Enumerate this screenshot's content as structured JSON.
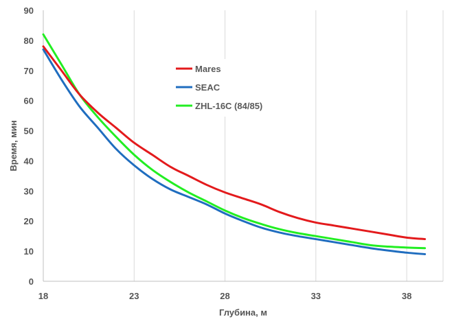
{
  "chart_data": {
    "type": "line",
    "xlabel": "Глубина, м",
    "ylabel": "Время, мин",
    "xlim": [
      18,
      40
    ],
    "ylim": [
      0,
      90
    ],
    "x_ticks": [
      18,
      23,
      28,
      33,
      38
    ],
    "y_ticks": [
      0,
      10,
      20,
      30,
      40,
      50,
      60,
      70,
      80,
      90
    ],
    "grid": "vertical",
    "legend_position": "upper-center",
    "series": [
      {
        "name": "Mares",
        "color": "#e31a1c",
        "x": [
          18,
          19,
          20,
          21,
          22,
          23,
          24,
          25,
          26,
          27,
          28,
          29,
          30,
          31,
          32,
          33,
          34,
          35,
          36,
          37,
          38,
          39
        ],
        "y": [
          78,
          70,
          62,
          56,
          51,
          46,
          42,
          38,
          35,
          32,
          29.5,
          27.5,
          25.5,
          23,
          21,
          19.5,
          18.5,
          17.5,
          16.5,
          15.5,
          14.5,
          14
        ]
      },
      {
        "name": "SEAC",
        "color": "#1f6dbf",
        "x": [
          18,
          19,
          20,
          21,
          22,
          23,
          24,
          25,
          26,
          27,
          28,
          29,
          30,
          31,
          32,
          33,
          34,
          35,
          36,
          37,
          38,
          39
        ],
        "y": [
          77,
          67,
          58,
          51,
          44,
          38.5,
          34,
          30.5,
          28,
          25.5,
          22.5,
          20,
          17.8,
          16.2,
          15,
          14,
          13,
          12,
          11,
          10.2,
          9.5,
          9
        ]
      },
      {
        "name": "ZHL-16C (84/85)",
        "color": "#22ee22",
        "x": [
          18,
          19,
          20,
          21,
          22,
          23,
          24,
          25,
          26,
          27,
          28,
          29,
          30,
          31,
          32,
          33,
          34,
          35,
          36,
          37,
          38,
          39
        ],
        "y": [
          82,
          72,
          62,
          54.5,
          48,
          42,
          37,
          33,
          29.5,
          26.5,
          23.5,
          21,
          19,
          17.3,
          16,
          15,
          14,
          13,
          12,
          11.5,
          11.2,
          11
        ]
      }
    ]
  }
}
